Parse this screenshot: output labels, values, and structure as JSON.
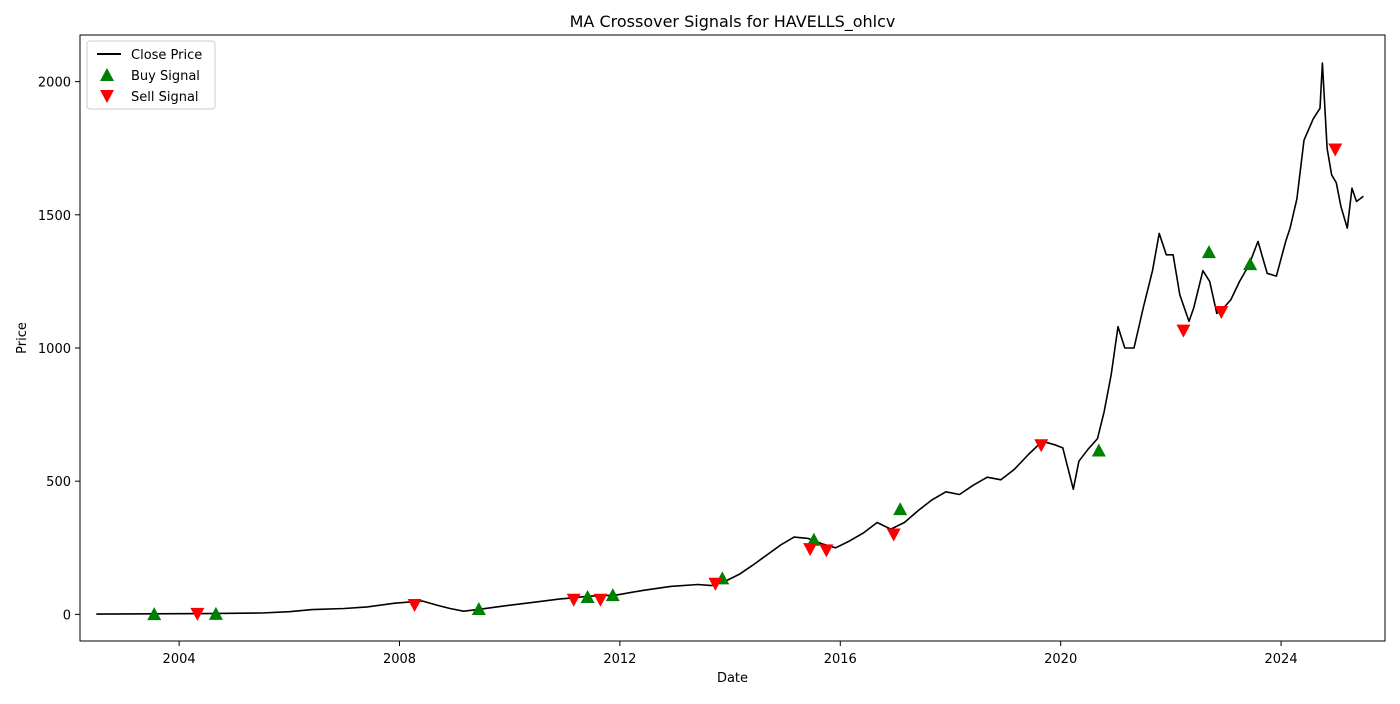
{
  "chart_data": {
    "type": "line",
    "title": "MA Crossover Signals for HAVELLS_ohlcv",
    "xlabel": "Date",
    "ylabel": "Price",
    "xlim": [
      "2002-03-15",
      "2025-11-20"
    ],
    "ylim": [
      -100,
      2175
    ],
    "x_ticks": [
      "2004",
      "2008",
      "2012",
      "2016",
      "2020",
      "2024"
    ],
    "y_ticks": [
      0,
      500,
      1000,
      1500,
      2000
    ],
    "grid": false,
    "legend_position": "top-left",
    "legend": [
      "Close Price",
      "Buy Signal",
      "Sell Signal"
    ],
    "colors": {
      "close": "#000000",
      "buy": "#008000",
      "sell": "#ff0000"
    },
    "series": [
      {
        "name": "Close Price",
        "x": [
          "2002-07-01",
          "2003-07-01",
          "2004-07-01",
          "2005-07-01",
          "2006-01-01",
          "2006-06-01",
          "2007-01-01",
          "2007-06-01",
          "2007-12-01",
          "2008-06-01",
          "2008-09-01",
          "2008-12-01",
          "2009-03-01",
          "2009-06-01",
          "2009-12-01",
          "2010-06-01",
          "2010-12-01",
          "2011-03-01",
          "2011-06-01",
          "2011-12-01",
          "2012-01-01",
          "2012-06-01",
          "2012-12-01",
          "2013-06-01",
          "2013-09-01",
          "2013-12-01",
          "2014-03-01",
          "2014-06-01",
          "2014-12-01",
          "2015-03-01",
          "2015-06-01",
          "2015-09-01",
          "2015-12-01",
          "2016-03-01",
          "2016-06-01",
          "2016-09-01",
          "2016-12-01",
          "2017-03-01",
          "2017-06-01",
          "2017-09-01",
          "2017-12-01",
          "2018-03-01",
          "2018-06-01",
          "2018-09-01",
          "2018-12-01",
          "2019-03-01",
          "2019-06-01",
          "2019-09-01",
          "2019-12-01",
          "2020-01-15",
          "2020-03-25",
          "2020-05-01",
          "2020-07-01",
          "2020-09-01",
          "2020-10-15",
          "2020-12-01",
          "2021-01-15",
          "2021-03-01",
          "2021-05-01",
          "2021-07-01",
          "2021-09-01",
          "2021-10-15",
          "2021-12-01",
          "2022-01-15",
          "2022-03-01",
          "2022-05-01",
          "2022-06-01",
          "2022-08-01",
          "2022-09-15",
          "2022-11-01",
          "2022-12-15",
          "2023-02-01",
          "2023-04-01",
          "2023-06-01",
          "2023-08-01",
          "2023-10-01",
          "2023-12-01",
          "2024-02-01",
          "2024-03-01",
          "2024-04-15",
          "2024-06-01",
          "2024-08-01",
          "2024-09-15",
          "2024-10-01",
          "2024-11-01",
          "2024-12-01",
          "2025-01-01",
          "2025-02-01",
          "2025-03-15",
          "2025-04-15",
          "2025-05-15",
          "2025-06-30"
        ],
        "values": [
          1,
          2,
          3,
          5,
          10,
          18,
          22,
          28,
          42,
          50,
          35,
          22,
          12,
          18,
          32,
          45,
          58,
          62,
          68,
          72,
          75,
          90,
          105,
          112,
          108,
          125,
          150,
          185,
          260,
          290,
          285,
          265,
          250,
          275,
          305,
          345,
          320,
          345,
          390,
          430,
          460,
          450,
          485,
          515,
          505,
          545,
          600,
          650,
          635,
          625,
          470,
          575,
          620,
          660,
          760,
          900,
          1080,
          1000,
          1000,
          1150,
          1290,
          1430,
          1350,
          1350,
          1200,
          1100,
          1150,
          1290,
          1250,
          1130,
          1150,
          1180,
          1250,
          1310,
          1400,
          1280,
          1270,
          1400,
          1450,
          1560,
          1780,
          1860,
          1900,
          2070,
          1750,
          1650,
          1620,
          1530,
          1450,
          1600,
          1550,
          1570
        ]
      }
    ],
    "buy_signals": {
      "name": "Buy Signal",
      "x": [
        "2003-07-20",
        "2004-09-01",
        "2009-06-10",
        "2011-06-01",
        "2011-11-15",
        "2013-11-10",
        "2015-07-10",
        "2017-02-01",
        "2020-09-10",
        "2022-09-10",
        "2023-06-10"
      ],
      "y": [
        1,
        2,
        20,
        65,
        72,
        135,
        280,
        395,
        615,
        1360,
        1315
      ]
    },
    "sell_signals": {
      "name": "Sell Signal",
      "x": [
        "2004-05-01",
        "2008-04-10",
        "2011-03-01",
        "2011-08-25",
        "2013-09-25",
        "2015-06-15",
        "2015-10-01",
        "2016-12-20",
        "2019-08-25",
        "2022-03-25",
        "2022-12-01",
        "2024-12-25"
      ],
      "y": [
        2,
        35,
        55,
        55,
        115,
        245,
        240,
        300,
        635,
        1065,
        1135,
        1745
      ]
    }
  }
}
